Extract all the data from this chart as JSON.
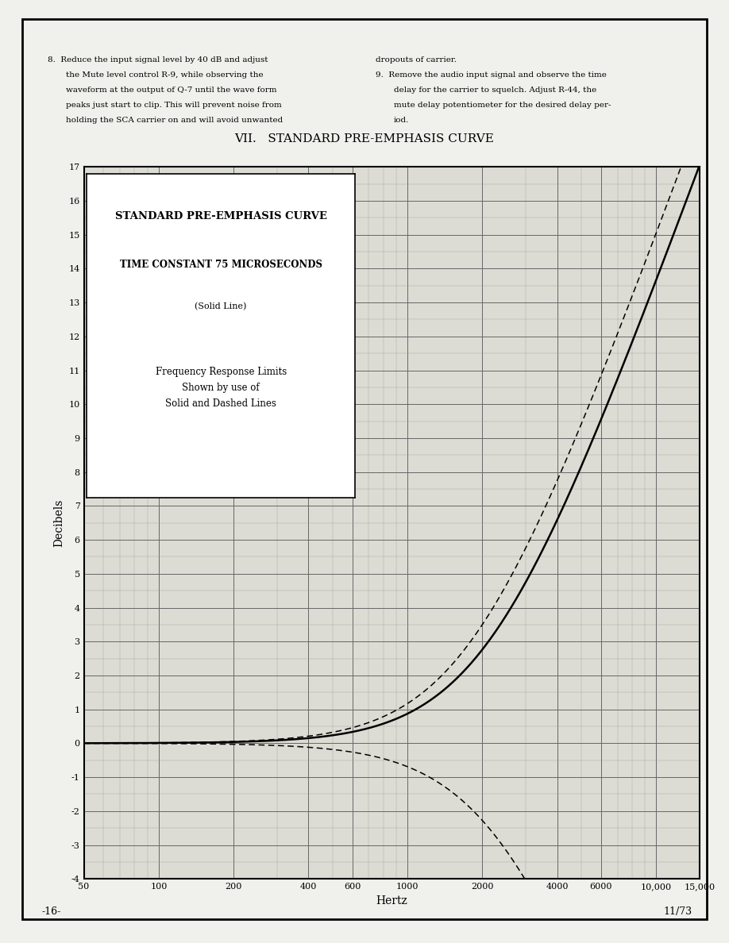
{
  "page_bg": "#f0f0ec",
  "chart_bg": "#dcdcd4",
  "section_title": "VII.   STANDARD PRE-EMPHASIS CURVE",
  "ylabel": "Decibels",
  "xlabel": "Hertz",
  "ylim": [
    -4,
    17
  ],
  "xlim": [
    50,
    15000
  ],
  "box_title1": "STANDARD PRE-EMPHASIS CURVE",
  "box_title2": "TIME CONSTANT 75 MICROSECONDS",
  "box_title3": "(Solid Line)",
  "box_text": "Frequency Response Limits\nShown by use of\nSolid and Dashed Lines",
  "footer_left": "-16-",
  "footer_right": "11/73",
  "tau": 7.5e-05,
  "grid_major_color": "#666666",
  "grid_minor_color": "#999999",
  "line_color": "#000000"
}
